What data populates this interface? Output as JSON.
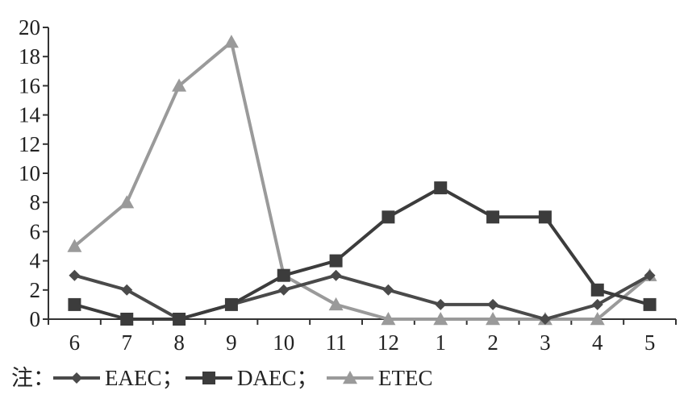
{
  "chart_data": {
    "type": "line",
    "categories": [
      "6",
      "7",
      "8",
      "9",
      "10",
      "11",
      "12",
      "1",
      "2",
      "3",
      "4",
      "5"
    ],
    "series": [
      {
        "name": "EAEC",
        "marker": "diamond",
        "color": "#4a4a4a",
        "values": [
          3,
          2,
          0,
          1,
          2,
          3,
          2,
          1,
          1,
          0,
          1,
          3
        ]
      },
      {
        "name": "DAEC",
        "marker": "square",
        "color": "#3c3c3c",
        "values": [
          1,
          0,
          0,
          1,
          3,
          4,
          7,
          9,
          7,
          7,
          2,
          1
        ]
      },
      {
        "name": "ETEC",
        "marker": "triangle",
        "color": "#9a9a9a",
        "values": [
          5,
          8,
          16,
          19,
          3,
          1,
          0,
          0,
          0,
          0,
          0,
          3
        ]
      }
    ],
    "ylim": [
      0,
      20
    ],
    "yticks": [
      "0",
      "2",
      "4",
      "6",
      "8",
      "10",
      "12",
      "14",
      "16",
      "18",
      "20"
    ],
    "grid": false,
    "legend_position": "bottom-left"
  },
  "legend": {
    "prefix": "注：",
    "items": [
      {
        "label": "EAEC；"
      },
      {
        "label": "DAEC；"
      },
      {
        "label": "ETEC"
      }
    ]
  }
}
